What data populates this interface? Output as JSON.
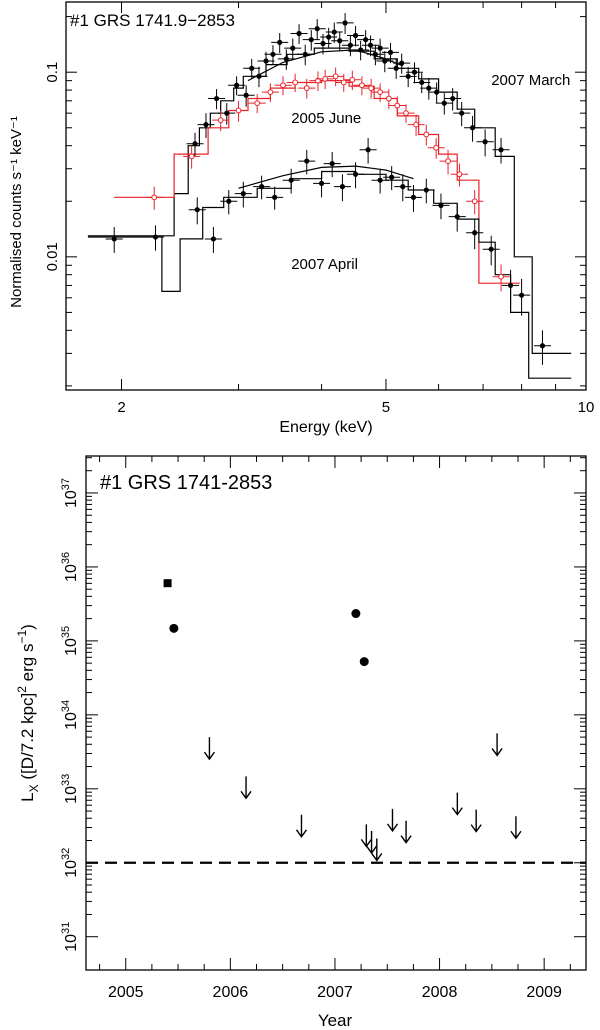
{
  "chart_data": [
    {
      "type": "scatter",
      "title": "#1 GRS 1741.9−2853",
      "xlabel": "Energy (keV)",
      "ylabel": "Normalised counts s⁻¹ keV⁻¹",
      "xscale": "log",
      "yscale": "log",
      "xlim": [
        1.65,
        10
      ],
      "ylim": [
        0.0019,
        0.24
      ],
      "xticks": [
        {
          "value": 2,
          "label": "2"
        },
        {
          "value": 5,
          "label": "5"
        },
        {
          "value": 10,
          "label": "10"
        }
      ],
      "yticks": [
        {
          "value": 0.1,
          "label": "0.1"
        },
        {
          "value": 0.01,
          "label": "0.01"
        }
      ],
      "colors": {
        "march": "#000000",
        "june": "#e8222a",
        "april": "#000000"
      },
      "series": [
        {
          "name": "2007 March",
          "color": "#000000",
          "points": [
            [
              2.58,
              0.041,
              0.006
            ],
            [
              2.68,
              0.052,
              0.008
            ],
            [
              2.78,
              0.072,
              0.009
            ],
            [
              2.88,
              0.06,
              0.008
            ],
            [
              2.98,
              0.085,
              0.01
            ],
            [
              3.08,
              0.075,
              0.01
            ],
            [
              3.14,
              0.105,
              0.013
            ],
            [
              3.22,
              0.095,
              0.012
            ],
            [
              3.3,
              0.115,
              0.014
            ],
            [
              3.38,
              0.125,
              0.015
            ],
            [
              3.46,
              0.145,
              0.018
            ],
            [
              3.54,
              0.118,
              0.015
            ],
            [
              3.62,
              0.135,
              0.017
            ],
            [
              3.7,
              0.162,
              0.02
            ],
            [
              3.78,
              0.125,
              0.016
            ],
            [
              3.86,
              0.15,
              0.019
            ],
            [
              3.94,
              0.172,
              0.022
            ],
            [
              4.02,
              0.143,
              0.018
            ],
            [
              4.1,
              0.155,
              0.019
            ],
            [
              4.18,
              0.165,
              0.021
            ],
            [
              4.26,
              0.148,
              0.018
            ],
            [
              4.34,
              0.185,
              0.024
            ],
            [
              4.42,
              0.14,
              0.018
            ],
            [
              4.5,
              0.158,
              0.02
            ],
            [
              4.58,
              0.132,
              0.016
            ],
            [
              4.66,
              0.15,
              0.019
            ],
            [
              4.74,
              0.14,
              0.018
            ],
            [
              4.82,
              0.125,
              0.016
            ],
            [
              4.9,
              0.135,
              0.017
            ],
            [
              4.98,
              0.115,
              0.015
            ],
            [
              5.08,
              0.128,
              0.016
            ],
            [
              5.18,
              0.105,
              0.013
            ],
            [
              5.28,
              0.112,
              0.014
            ],
            [
              5.4,
              0.095,
              0.012
            ],
            [
              5.52,
              0.1,
              0.013
            ],
            [
              5.66,
              0.088,
              0.011
            ],
            [
              5.8,
              0.082,
              0.011
            ],
            [
              5.96,
              0.078,
              0.01
            ],
            [
              6.12,
              0.068,
              0.009
            ],
            [
              6.3,
              0.072,
              0.01
            ],
            [
              6.5,
              0.06,
              0.009
            ],
            [
              6.75,
              0.05,
              0.008
            ],
            [
              7.05,
              0.042,
              0.007
            ],
            [
              7.45,
              0.038,
              0.006
            ],
            [
              8.6,
              0.0033,
              0.0007
            ]
          ],
          "model_steps": [
            [
              1.78,
              2.4,
              0.013
            ],
            [
              2.4,
              2.52,
              0.022
            ],
            [
              2.52,
              2.62,
              0.04
            ],
            [
              2.62,
              2.72,
              0.05
            ],
            [
              2.72,
              2.82,
              0.06
            ],
            [
              2.82,
              2.95,
              0.07
            ],
            [
              2.95,
              3.05,
              0.082
            ],
            [
              3.05,
              3.3,
              0.095
            ],
            [
              3.3,
              3.55,
              0.11
            ],
            [
              3.55,
              3.9,
              0.125
            ],
            [
              3.9,
              4.4,
              0.135
            ],
            [
              4.4,
              4.8,
              0.13
            ],
            [
              4.8,
              5.2,
              0.118
            ],
            [
              5.2,
              5.6,
              0.105
            ],
            [
              5.6,
              6.0,
              0.092
            ],
            [
              6.0,
              6.4,
              0.078
            ],
            [
              6.4,
              6.8,
              0.063
            ],
            [
              6.8,
              7.3,
              0.05
            ],
            [
              7.3,
              7.8,
              0.035
            ],
            [
              7.8,
              8.3,
              0.01
            ],
            [
              8.3,
              9.5,
              0.003
            ]
          ],
          "model_curve": [
            [
              3.1,
              0.09
            ],
            [
              3.5,
              0.113
            ],
            [
              4.0,
              0.129
            ],
            [
              4.5,
              0.132
            ],
            [
              5.0,
              0.118
            ],
            [
              5.3,
              0.108
            ]
          ]
        },
        {
          "name": "2005 June",
          "color": "#e8222a",
          "points": [
            [
              2.24,
              0.021,
              0.003
            ],
            [
              2.55,
              0.035,
              0.005
            ],
            [
              2.82,
              0.055,
              0.007
            ],
            [
              3.0,
              0.062,
              0.008
            ],
            [
              3.2,
              0.068,
              0.008
            ],
            [
              3.35,
              0.078,
              0.009
            ],
            [
              3.5,
              0.085,
              0.01
            ],
            [
              3.65,
              0.088,
              0.01
            ],
            [
              3.8,
              0.082,
              0.01
            ],
            [
              3.95,
              0.09,
              0.011
            ],
            [
              4.05,
              0.092,
              0.011
            ],
            [
              4.2,
              0.095,
              0.011
            ],
            [
              4.32,
              0.088,
              0.01
            ],
            [
              4.45,
              0.091,
              0.011
            ],
            [
              4.6,
              0.085,
              0.01
            ],
            [
              4.75,
              0.082,
              0.01
            ],
            [
              4.9,
              0.078,
              0.009
            ],
            [
              5.05,
              0.072,
              0.009
            ],
            [
              5.2,
              0.066,
              0.008
            ],
            [
              5.36,
              0.06,
              0.007
            ],
            [
              5.55,
              0.052,
              0.007
            ],
            [
              5.75,
              0.046,
              0.006
            ],
            [
              5.95,
              0.039,
              0.005
            ],
            [
              6.2,
              0.033,
              0.005
            ],
            [
              6.45,
              0.028,
              0.004
            ],
            [
              6.8,
              0.02,
              0.003
            ],
            [
              7.45,
              0.0078,
              0.0013
            ]
          ],
          "model_steps": [
            [
              1.95,
              2.4,
              0.021
            ],
            [
              2.4,
              2.7,
              0.036
            ],
            [
              2.7,
              2.9,
              0.05
            ],
            [
              2.9,
              3.1,
              0.062
            ],
            [
              3.1,
              3.35,
              0.072
            ],
            [
              3.35,
              3.65,
              0.082
            ],
            [
              3.65,
              4.0,
              0.088
            ],
            [
              4.0,
              4.4,
              0.09
            ],
            [
              4.4,
              4.8,
              0.084
            ],
            [
              4.8,
              5.2,
              0.072
            ],
            [
              5.2,
              5.6,
              0.058
            ],
            [
              5.6,
              6.0,
              0.046
            ],
            [
              6.0,
              6.4,
              0.036
            ],
            [
              6.4,
              6.9,
              0.026
            ],
            [
              6.9,
              7.4,
              0.0072
            ],
            [
              7.4,
              7.95,
              0.0072
            ]
          ]
        },
        {
          "name": "2007 April",
          "color": "#000000",
          "points": [
            [
              1.95,
              0.0125,
              0.002
            ],
            [
              2.25,
              0.0128,
              0.002
            ],
            [
              2.6,
              0.018,
              0.003
            ],
            [
              2.75,
              0.0125,
              0.002
            ],
            [
              2.9,
              0.02,
              0.003
            ],
            [
              3.05,
              0.022,
              0.0035
            ],
            [
              3.25,
              0.024,
              0.0035
            ],
            [
              3.4,
              0.021,
              0.003
            ],
            [
              3.6,
              0.026,
              0.004
            ],
            [
              3.8,
              0.033,
              0.005
            ],
            [
              4.0,
              0.025,
              0.004
            ],
            [
              4.15,
              0.032,
              0.005
            ],
            [
              4.3,
              0.024,
              0.004
            ],
            [
              4.5,
              0.028,
              0.0045
            ],
            [
              4.7,
              0.038,
              0.006
            ],
            [
              4.9,
              0.026,
              0.004
            ],
            [
              5.1,
              0.027,
              0.004
            ],
            [
              5.3,
              0.024,
              0.004
            ],
            [
              5.5,
              0.021,
              0.0035
            ],
            [
              5.75,
              0.023,
              0.0035
            ],
            [
              6.05,
              0.019,
              0.003
            ],
            [
              6.4,
              0.0165,
              0.0028
            ],
            [
              6.8,
              0.0135,
              0.0025
            ],
            [
              7.2,
              0.011,
              0.002
            ],
            [
              7.7,
              0.007,
              0.0015
            ],
            [
              8.0,
              0.0062,
              0.0014
            ]
          ],
          "model_steps": [
            [
              1.78,
              2.3,
              0.0128
            ],
            [
              2.3,
              2.45,
              0.0065
            ],
            [
              2.45,
              2.65,
              0.0125
            ],
            [
              2.65,
              2.85,
              0.0185
            ],
            [
              2.85,
              3.2,
              0.021
            ],
            [
              3.2,
              3.6,
              0.0235
            ],
            [
              3.6,
              4.0,
              0.0265
            ],
            [
              4.0,
              4.5,
              0.029
            ],
            [
              4.5,
              5.0,
              0.028
            ],
            [
              5.0,
              5.4,
              0.026
            ],
            [
              5.4,
              5.9,
              0.023
            ],
            [
              5.9,
              6.4,
              0.0195
            ],
            [
              6.4,
              6.9,
              0.016
            ],
            [
              6.9,
              7.3,
              0.012
            ],
            [
              7.3,
              7.7,
              0.008
            ],
            [
              7.7,
              8.2,
              0.005
            ],
            [
              8.2,
              9.5,
              0.0022
            ]
          ],
          "model_curve": [
            [
              3.0,
              0.0235
            ],
            [
              3.5,
              0.0275
            ],
            [
              4.0,
              0.0305
            ],
            [
              4.5,
              0.031
            ],
            [
              5.0,
              0.0295
            ],
            [
              5.5,
              0.0265
            ]
          ]
        }
      ],
      "annotations": [
        {
          "text": "2007 March",
          "x": 7.2,
          "y": 0.085,
          "color": "#000000"
        },
        {
          "text": "2005 June",
          "x": 3.6,
          "y": 0.053,
          "color": "#e8222a"
        },
        {
          "text": "2007 April",
          "x": 3.6,
          "y": 0.0086,
          "color": "#000000"
        }
      ]
    },
    {
      "type": "scatter",
      "title": "#1 GRS 1741-2853",
      "xlabel": "Year",
      "ylabel": "L_X ([D/7.2 kpc]^2 erg s^-1)",
      "ylabel_parts": {
        "lx": "L",
        "lx_sub": "X",
        "open": " ([D/7.2 kpc]",
        "sq": "2",
        "unit": " erg s",
        "neg1": "−1",
        "close": ")"
      },
      "yscale": "log",
      "xlim": [
        2004.62,
        2009.4
      ],
      "ylim": [
        30.55,
        37.5
      ],
      "xticks": [
        2005,
        2006,
        2007,
        2008,
        2009
      ],
      "ytick_exponents": [
        31,
        32,
        33,
        34,
        35,
        36,
        37
      ],
      "ytick_base": "10",
      "detections_circle": [
        [
          2005.46,
          35.17
        ],
        [
          2007.2,
          35.37
        ],
        [
          2007.28,
          34.72
        ]
      ],
      "detections_square": [
        [
          2005.4,
          35.78
        ]
      ],
      "upper_limits": [
        [
          2005.8,
          33.55
        ],
        [
          2006.15,
          33.02
        ],
        [
          2006.68,
          32.5
        ],
        [
          2007.3,
          32.37
        ],
        [
          2007.35,
          32.28
        ],
        [
          2007.4,
          32.18
        ],
        [
          2007.55,
          32.58
        ],
        [
          2007.68,
          32.42
        ],
        [
          2008.17,
          32.8
        ],
        [
          2008.35,
          32.57
        ],
        [
          2008.55,
          33.6
        ],
        [
          2008.73,
          32.48
        ]
      ],
      "reference_line": 32.0
    }
  ]
}
